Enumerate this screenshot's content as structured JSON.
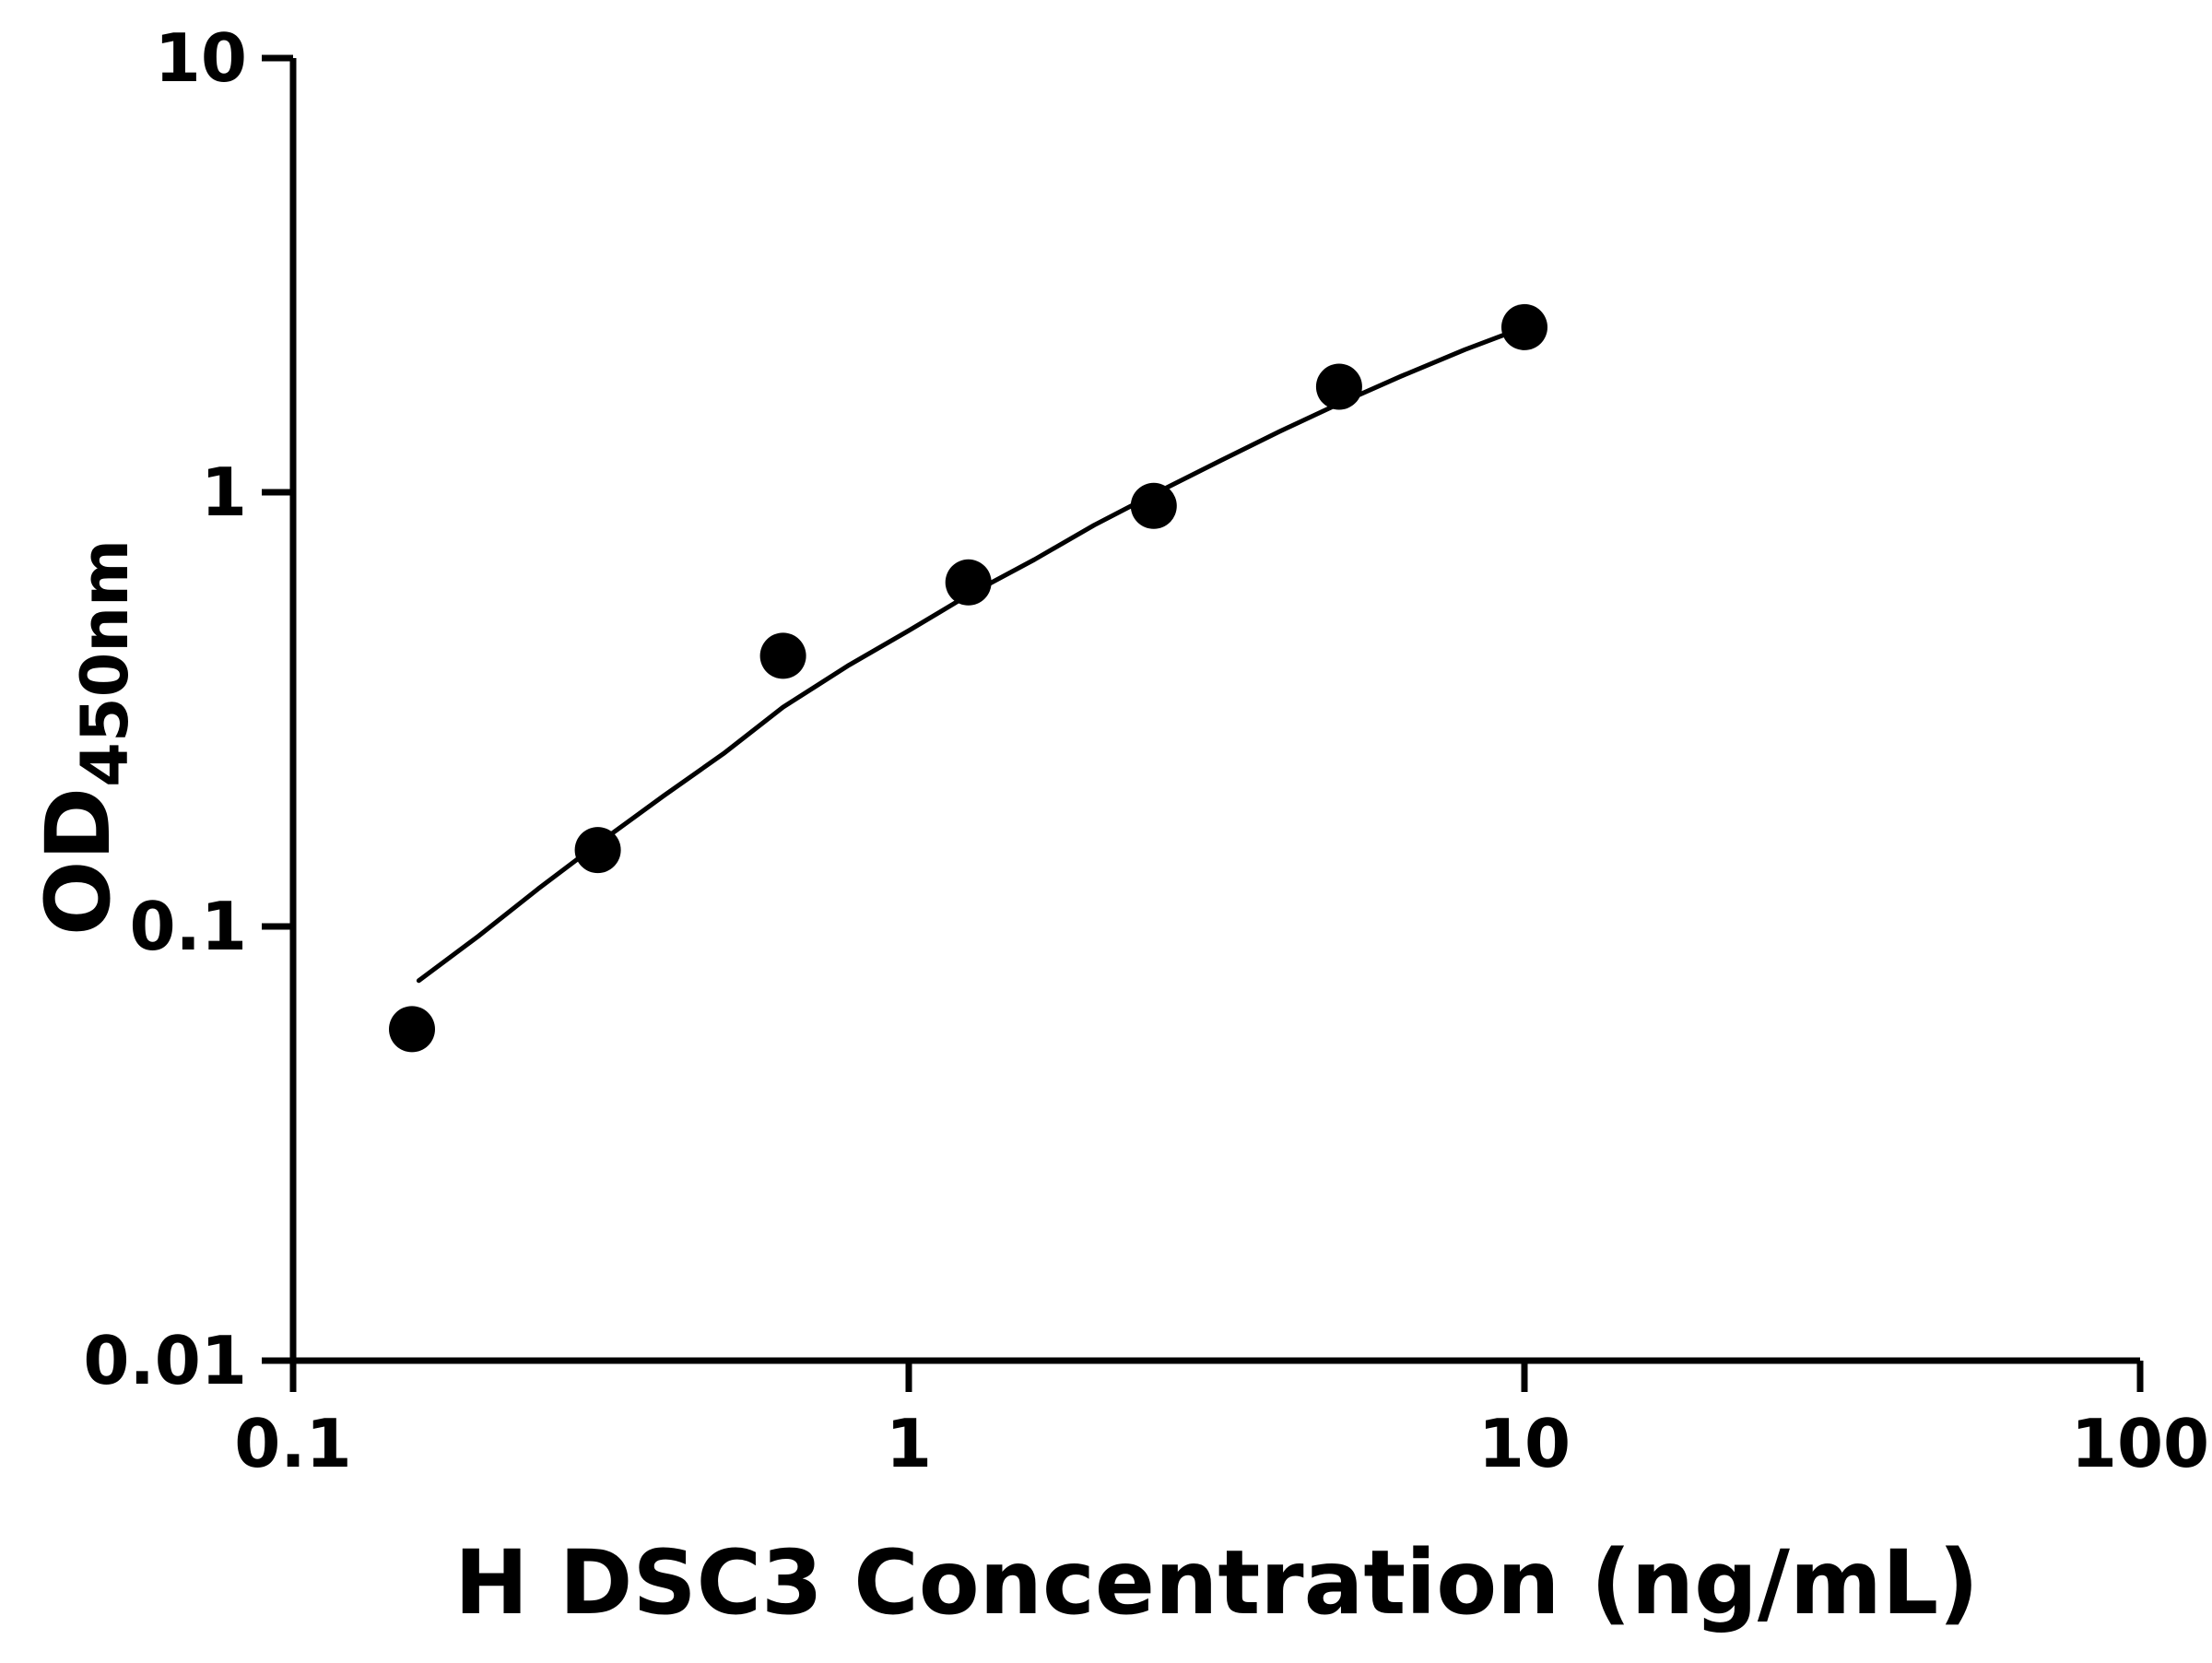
{
  "page": {
    "background_color": "#ffffff",
    "foreground_color": "#000000"
  },
  "chart_data": {
    "type": "scatter",
    "title": "",
    "xlabel": "H DSC3 Concentration (ng/mL)",
    "ylabel_main": "OD",
    "ylabel_sub": "450nm",
    "x_scale": "log",
    "y_scale": "log",
    "xlim": [
      0.1,
      100
    ],
    "ylim": [
      0.01,
      10
    ],
    "x_ticks": [
      "0.1",
      "1",
      "10",
      "100"
    ],
    "y_ticks": [
      "0.01",
      "0.1",
      "1",
      "10"
    ],
    "grid": false,
    "legend": false,
    "marker_color": "#000000",
    "line_color": "#000000",
    "points": {
      "x": [
        0.156,
        0.3125,
        0.625,
        1.25,
        2.5,
        5,
        10
      ],
      "y": [
        0.058,
        0.15,
        0.42,
        0.62,
        0.93,
        1.75,
        2.4
      ]
    },
    "fit_curve": {
      "x": [
        0.16,
        0.2,
        0.25,
        0.3125,
        0.4,
        0.5,
        0.625,
        0.8,
        1.0,
        1.25,
        1.6,
        2.0,
        2.5,
        3.2,
        4.0,
        5.0,
        6.3,
        8.0,
        10.0
      ],
      "y": [
        0.075,
        0.095,
        0.122,
        0.155,
        0.2,
        0.25,
        0.32,
        0.4,
        0.48,
        0.58,
        0.7,
        0.84,
        0.99,
        1.18,
        1.38,
        1.6,
        1.85,
        2.13,
        2.4
      ]
    }
  }
}
